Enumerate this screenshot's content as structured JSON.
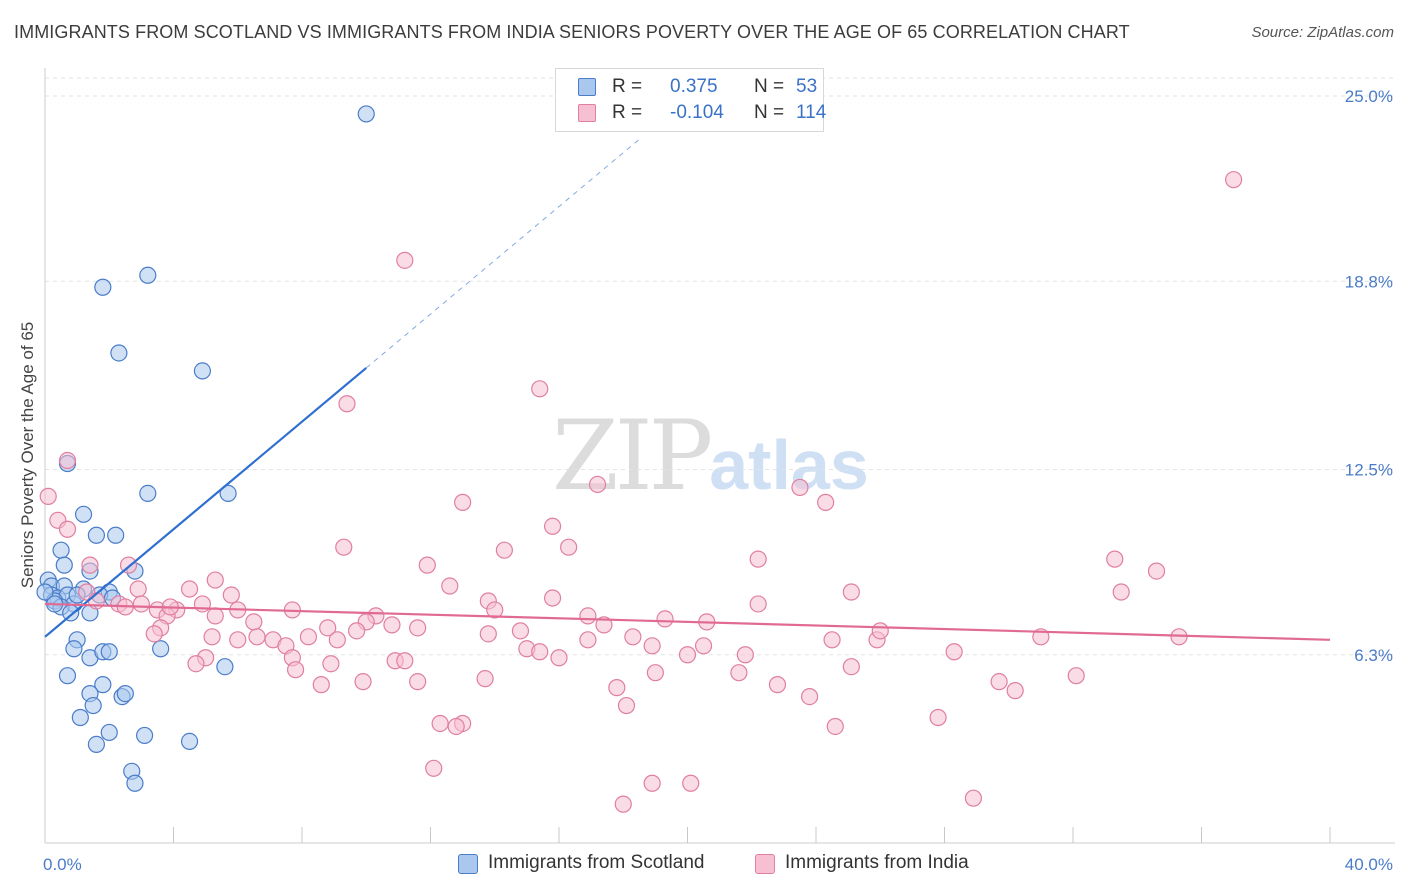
{
  "title": "IMMIGRANTS FROM SCOTLAND VS IMMIGRANTS FROM INDIA SENIORS POVERTY OVER THE AGE OF 65 CORRELATION CHART",
  "source": "Source: ZipAtlas.com",
  "watermark": {
    "zip": "ZIP",
    "atlas": "atlas"
  },
  "legend": {
    "scotland": {
      "r_label": "R =",
      "r_value": "0.375",
      "n_label": "N =",
      "n_value": "53"
    },
    "india": {
      "r_label": "R =",
      "r_value": "-0.104",
      "n_label": "N =",
      "n_value": "114"
    }
  },
  "series_labels": {
    "scotland": "Immigrants from Scotland",
    "india": "Immigrants from India"
  },
  "colors": {
    "scotland_fill": "#aac8ee",
    "scotland_stroke": "#4a7cc9",
    "scotland_line": "#2e6fcf",
    "india_fill": "#f6c0d2",
    "india_stroke": "#e07fa0",
    "india_line": "#e06a94",
    "axis_label": "#4a7cc9",
    "grid": "#e3e3e3"
  },
  "chart_data": {
    "type": "scatter",
    "title": "IMMIGRANTS FROM SCOTLAND VS IMMIGRANTS FROM INDIA SENIORS POVERTY OVER THE AGE OF 65 CORRELATION CHART",
    "xlabel": "",
    "ylabel": "Seniors Poverty Over the Age of 65",
    "xlim": [
      0,
      40
    ],
    "ylim": [
      0,
      25.0
    ],
    "x_tick_labels": [
      "0.0%",
      "40.0%"
    ],
    "y_ticks": [
      6.3,
      12.5,
      18.8,
      25.0
    ],
    "y_tick_labels": [
      "6.3%",
      "12.5%",
      "18.8%",
      "25.0%"
    ],
    "grid": true,
    "legend_position": "top-center",
    "series": [
      {
        "name": "Immigrants from Scotland",
        "R": 0.375,
        "N": 53,
        "trend": {
          "x_start": 0,
          "y_start": 6.9,
          "x_end": 10.0,
          "y_end": 15.9,
          "dashed_to_x": 18.5
        },
        "points": [
          [
            10.0,
            24.4
          ],
          [
            3.2,
            19.0
          ],
          [
            1.8,
            18.6
          ],
          [
            2.3,
            16.4
          ],
          [
            4.9,
            15.8
          ],
          [
            0.7,
            12.7
          ],
          [
            3.2,
            11.7
          ],
          [
            5.7,
            11.7
          ],
          [
            1.2,
            11.0
          ],
          [
            1.6,
            10.3
          ],
          [
            2.2,
            10.3
          ],
          [
            0.5,
            9.8
          ],
          [
            0.6,
            9.3
          ],
          [
            1.4,
            9.1
          ],
          [
            2.8,
            9.1
          ],
          [
            0.1,
            8.8
          ],
          [
            0.2,
            8.6
          ],
          [
            0.6,
            8.6
          ],
          [
            1.2,
            8.5
          ],
          [
            2.0,
            8.4
          ],
          [
            0.2,
            8.3
          ],
          [
            0.4,
            8.2
          ],
          [
            0.7,
            8.3
          ],
          [
            1.7,
            8.3
          ],
          [
            0.3,
            8.1
          ],
          [
            0.9,
            8.0
          ],
          [
            0.5,
            7.9
          ],
          [
            0.8,
            7.7
          ],
          [
            1.4,
            7.7
          ],
          [
            1.0,
            6.8
          ],
          [
            0.9,
            6.5
          ],
          [
            1.4,
            6.2
          ],
          [
            1.8,
            6.4
          ],
          [
            2.0,
            6.4
          ],
          [
            3.6,
            6.5
          ],
          [
            5.6,
            5.9
          ],
          [
            0.7,
            5.6
          ],
          [
            1.8,
            5.3
          ],
          [
            1.4,
            5.0
          ],
          [
            2.4,
            4.9
          ],
          [
            2.5,
            5.0
          ],
          [
            1.5,
            4.6
          ],
          [
            1.1,
            4.2
          ],
          [
            2.0,
            3.7
          ],
          [
            3.1,
            3.6
          ],
          [
            1.6,
            3.3
          ],
          [
            4.5,
            3.4
          ],
          [
            2.7,
            2.4
          ],
          [
            2.8,
            2.0
          ],
          [
            0.0,
            8.4
          ],
          [
            0.3,
            8.0
          ],
          [
            1.0,
            8.3
          ],
          [
            2.1,
            8.2
          ]
        ]
      },
      {
        "name": "Immigrants from India",
        "R": -0.104,
        "N": 114,
        "trend": {
          "x_start": 0,
          "y_start": 8.0,
          "x_end": 40.0,
          "y_end": 6.8
        },
        "points": [
          [
            37.0,
            22.2
          ],
          [
            11.2,
            19.5
          ],
          [
            15.4,
            15.2
          ],
          [
            9.4,
            14.7
          ],
          [
            0.7,
            12.8
          ],
          [
            0.1,
            11.6
          ],
          [
            0.4,
            10.8
          ],
          [
            0.7,
            10.5
          ],
          [
            17.2,
            12.0
          ],
          [
            23.5,
            11.9
          ],
          [
            13.0,
            11.4
          ],
          [
            24.3,
            11.4
          ],
          [
            15.8,
            10.6
          ],
          [
            16.3,
            9.9
          ],
          [
            9.3,
            9.9
          ],
          [
            14.3,
            9.8
          ],
          [
            22.2,
            9.5
          ],
          [
            33.3,
            9.5
          ],
          [
            1.4,
            9.3
          ],
          [
            2.6,
            9.3
          ],
          [
            11.9,
            9.3
          ],
          [
            34.6,
            9.1
          ],
          [
            5.3,
            8.8
          ],
          [
            12.6,
            8.6
          ],
          [
            4.5,
            8.5
          ],
          [
            2.9,
            8.5
          ],
          [
            1.3,
            8.4
          ],
          [
            5.8,
            8.3
          ],
          [
            25.1,
            8.4
          ],
          [
            33.5,
            8.4
          ],
          [
            1.6,
            8.1
          ],
          [
            2.3,
            8.0
          ],
          [
            3.0,
            8.0
          ],
          [
            13.8,
            8.1
          ],
          [
            22.2,
            8.0
          ],
          [
            14.0,
            7.8
          ],
          [
            2.5,
            7.9
          ],
          [
            3.5,
            7.8
          ],
          [
            4.1,
            7.8
          ],
          [
            6.0,
            7.8
          ],
          [
            7.7,
            7.8
          ],
          [
            10.3,
            7.6
          ],
          [
            3.8,
            7.6
          ],
          [
            5.3,
            7.6
          ],
          [
            10.0,
            7.4
          ],
          [
            10.8,
            7.3
          ],
          [
            6.5,
            7.4
          ],
          [
            16.9,
            7.6
          ],
          [
            20.6,
            7.4
          ],
          [
            3.6,
            7.2
          ],
          [
            8.8,
            7.2
          ],
          [
            11.6,
            7.2
          ],
          [
            14.8,
            7.1
          ],
          [
            3.4,
            7.0
          ],
          [
            5.2,
            6.9
          ],
          [
            6.6,
            6.9
          ],
          [
            8.2,
            6.9
          ],
          [
            13.8,
            7.0
          ],
          [
            18.3,
            6.9
          ],
          [
            6.0,
            6.8
          ],
          [
            7.1,
            6.8
          ],
          [
            9.1,
            6.8
          ],
          [
            16.9,
            6.8
          ],
          [
            25.9,
            6.8
          ],
          [
            31.0,
            6.9
          ],
          [
            35.3,
            6.9
          ],
          [
            7.5,
            6.6
          ],
          [
            20.5,
            6.6
          ],
          [
            18.9,
            6.6
          ],
          [
            15.0,
            6.5
          ],
          [
            15.4,
            6.4
          ],
          [
            24.5,
            6.8
          ],
          [
            28.3,
            6.4
          ],
          [
            5.0,
            6.2
          ],
          [
            7.7,
            6.2
          ],
          [
            10.9,
            6.1
          ],
          [
            11.2,
            6.1
          ],
          [
            16.0,
            6.2
          ],
          [
            20.0,
            6.3
          ],
          [
            4.7,
            6.0
          ],
          [
            8.9,
            6.0
          ],
          [
            7.8,
            5.8
          ],
          [
            25.1,
            5.9
          ],
          [
            19.0,
            5.7
          ],
          [
            21.6,
            5.7
          ],
          [
            32.1,
            5.6
          ],
          [
            13.7,
            5.5
          ],
          [
            11.6,
            5.4
          ],
          [
            8.6,
            5.3
          ],
          [
            9.9,
            5.4
          ],
          [
            22.8,
            5.3
          ],
          [
            29.7,
            5.4
          ],
          [
            17.8,
            5.2
          ],
          [
            30.2,
            5.1
          ],
          [
            23.8,
            4.9
          ],
          [
            18.1,
            4.6
          ],
          [
            27.8,
            4.2
          ],
          [
            12.3,
            4.0
          ],
          [
            13.0,
            4.0
          ],
          [
            12.8,
            3.9
          ],
          [
            24.6,
            3.9
          ],
          [
            12.1,
            2.5
          ],
          [
            20.1,
            2.0
          ],
          [
            18.9,
            2.0
          ],
          [
            28.9,
            1.5
          ],
          [
            18.0,
            1.3
          ],
          [
            15.8,
            8.2
          ],
          [
            4.9,
            8.0
          ],
          [
            26.0,
            7.1
          ],
          [
            21.8,
            6.3
          ],
          [
            9.7,
            7.1
          ],
          [
            19.3,
            7.5
          ],
          [
            3.9,
            7.9
          ],
          [
            17.4,
            7.3
          ]
        ]
      }
    ]
  }
}
